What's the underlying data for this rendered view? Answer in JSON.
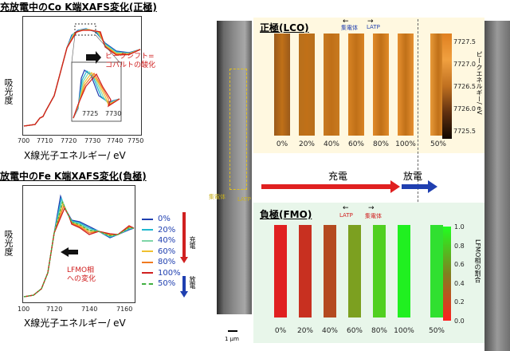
{
  "top_plot": {
    "title": "充放電中のCo K端XAFS変化(正極)",
    "ylabel": "吸光度",
    "xlabel": "X線光子エネルギー/ eV",
    "xticks": [
      "700",
      "7710",
      "7720",
      "7730",
      "7740",
      "7750"
    ],
    "inset_xticks": [
      "7725",
      "7730"
    ],
    "annotation": "ピークシフト=\nコバルトの酸化"
  },
  "bottom_plot": {
    "title": "放電中のFe K端XAFS変化(負極)",
    "ylabel": "吸光度",
    "xlabel": "X線光子エネルギー/ eV",
    "xticks": [
      "100",
      "7120",
      "7140",
      "7160"
    ],
    "annotation": "LFMO相\nへの変化"
  },
  "legend": {
    "items": [
      {
        "label": "0%",
        "color": "#1f3fb0",
        "dash": false
      },
      {
        "label": "20%",
        "color": "#20b8d0",
        "dash": false
      },
      {
        "label": "40%",
        "color": "#7fd6a8",
        "dash": false
      },
      {
        "label": "60%",
        "color": "#f0c030",
        "dash": false
      },
      {
        "label": "80%",
        "color": "#f07a20",
        "dash": false
      },
      {
        "label": "100%",
        "color": "#d02020",
        "dash": false
      },
      {
        "label": "50%",
        "color": "#40b040",
        "dash": true
      }
    ],
    "charge_label": "充電",
    "discharge_label": "放電"
  },
  "micro": {
    "label_collector": "集電体",
    "label_latp": "LATP",
    "scale": "1 μm"
  },
  "lco": {
    "title": "正極(LCO)",
    "label_collector": "集電体",
    "label_latp": "LATP",
    "colorbar_title": "ピークエネルギー/ eV",
    "colorbar_ticks": [
      "7727.5",
      "7727.0",
      "7726.5",
      "7726.0",
      "7725.5"
    ],
    "percents": [
      "0%",
      "20%",
      "40%",
      "60%",
      "80%",
      "100%",
      "50%"
    ]
  },
  "charge_arrows": {
    "charge": "充電",
    "discharge": "放電"
  },
  "fmo": {
    "title": "負極(FMO)",
    "label_latp": "LATP",
    "label_collector": "集電体",
    "colorbar_title": "LFMO相の割合",
    "colorbar_ticks": [
      "1.0",
      "0.8",
      "0.6",
      "0.4",
      "0.2",
      "0.0"
    ],
    "percents": [
      "0%",
      "20%",
      "40%",
      "60%",
      "80%",
      "100%",
      "50%"
    ]
  }
}
